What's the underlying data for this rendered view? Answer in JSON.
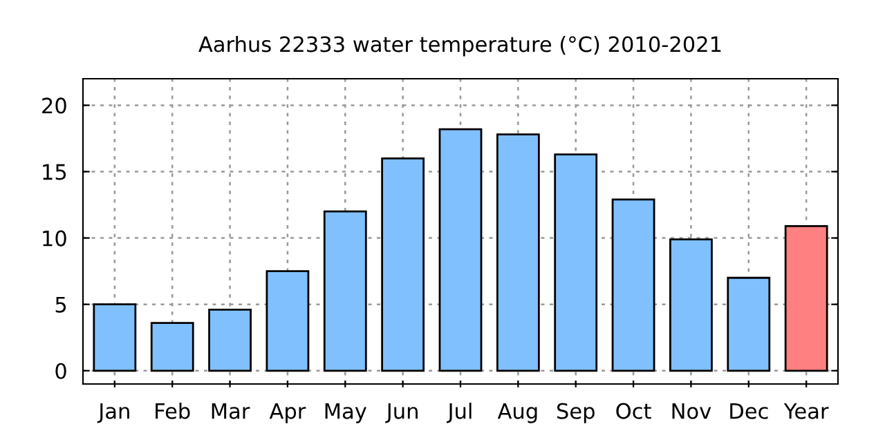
{
  "chart_data": {
    "type": "bar",
    "title": "Aarhus 22333 water temperature (°C) 2010-2021",
    "categories": [
      "Jan",
      "Feb",
      "Mar",
      "Apr",
      "May",
      "Jun",
      "Jul",
      "Aug",
      "Sep",
      "Oct",
      "Nov",
      "Dec",
      "Year"
    ],
    "values": [
      5.0,
      3.6,
      4.6,
      7.5,
      12.0,
      16.0,
      18.2,
      17.8,
      16.3,
      12.9,
      9.9,
      7.0,
      10.9
    ],
    "colors": [
      "#80c0ff",
      "#80c0ff",
      "#80c0ff",
      "#80c0ff",
      "#80c0ff",
      "#80c0ff",
      "#80c0ff",
      "#80c0ff",
      "#80c0ff",
      "#80c0ff",
      "#80c0ff",
      "#80c0ff",
      "#ff8080"
    ],
    "ylim": [
      -1,
      22
    ],
    "yticks": [
      0,
      5,
      10,
      15,
      20
    ],
    "grid": true
  }
}
